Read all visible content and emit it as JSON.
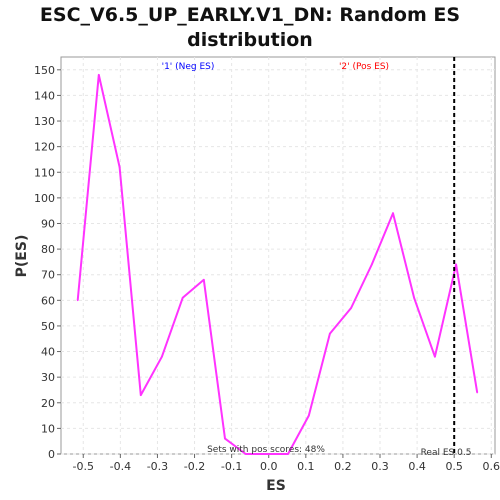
{
  "chart_data": {
    "type": "line",
    "title_line1": "ESC_V6.5_UP_EARLY.V1_DN: Random ES",
    "title_line2": "distribution",
    "xlabel": "ES",
    "ylabel": "P(ES)",
    "xlim": [
      -0.56,
      0.61
    ],
    "ylim": [
      0,
      155
    ],
    "xticks": [
      "-0.5",
      "-0.4",
      "-0.3",
      "-0.2",
      "-0.1",
      "0.0",
      "0.1",
      "0.2",
      "0.3",
      "0.4",
      "0.5",
      "0.6"
    ],
    "xtick_values": [
      -0.5,
      -0.4,
      -0.3,
      -0.2,
      -0.1,
      0.0,
      0.1,
      0.2,
      0.3,
      0.4,
      0.5,
      0.6
    ],
    "yticks": [
      "0",
      "10",
      "20",
      "30",
      "40",
      "50",
      "60",
      "70",
      "80",
      "90",
      "100",
      "110",
      "120",
      "130",
      "140",
      "150"
    ],
    "ytick_values": [
      0,
      10,
      20,
      30,
      40,
      50,
      60,
      70,
      80,
      90,
      100,
      110,
      120,
      130,
      140,
      150
    ],
    "grid": true,
    "series": [
      {
        "color": "#ff33ff",
        "x": [
          -0.515,
          -0.458,
          -0.402,
          -0.345,
          -0.288,
          -0.232,
          -0.175,
          -0.118,
          -0.062,
          -0.005,
          0.052,
          0.108,
          0.165,
          0.222,
          0.278,
          0.335,
          0.392,
          0.448,
          0.505,
          0.562
        ],
        "y": [
          60,
          148,
          112,
          23,
          38,
          61,
          68,
          6,
          0,
          0,
          0,
          15,
          47,
          57,
          74,
          94,
          61,
          38,
          74,
          24
        ]
      }
    ],
    "real_es": 0.5,
    "annotations": {
      "neg": "'1' (Neg ES)",
      "pos": "'2' (Pos ES)",
      "pos_scores": "Sets with pos scores: 48%",
      "real_es": "Real ES 0.5"
    },
    "colors": {
      "line": "#ff33ff",
      "neg": "#0000ff",
      "pos": "#ff0000",
      "grid": "#e6e6e6"
    }
  }
}
